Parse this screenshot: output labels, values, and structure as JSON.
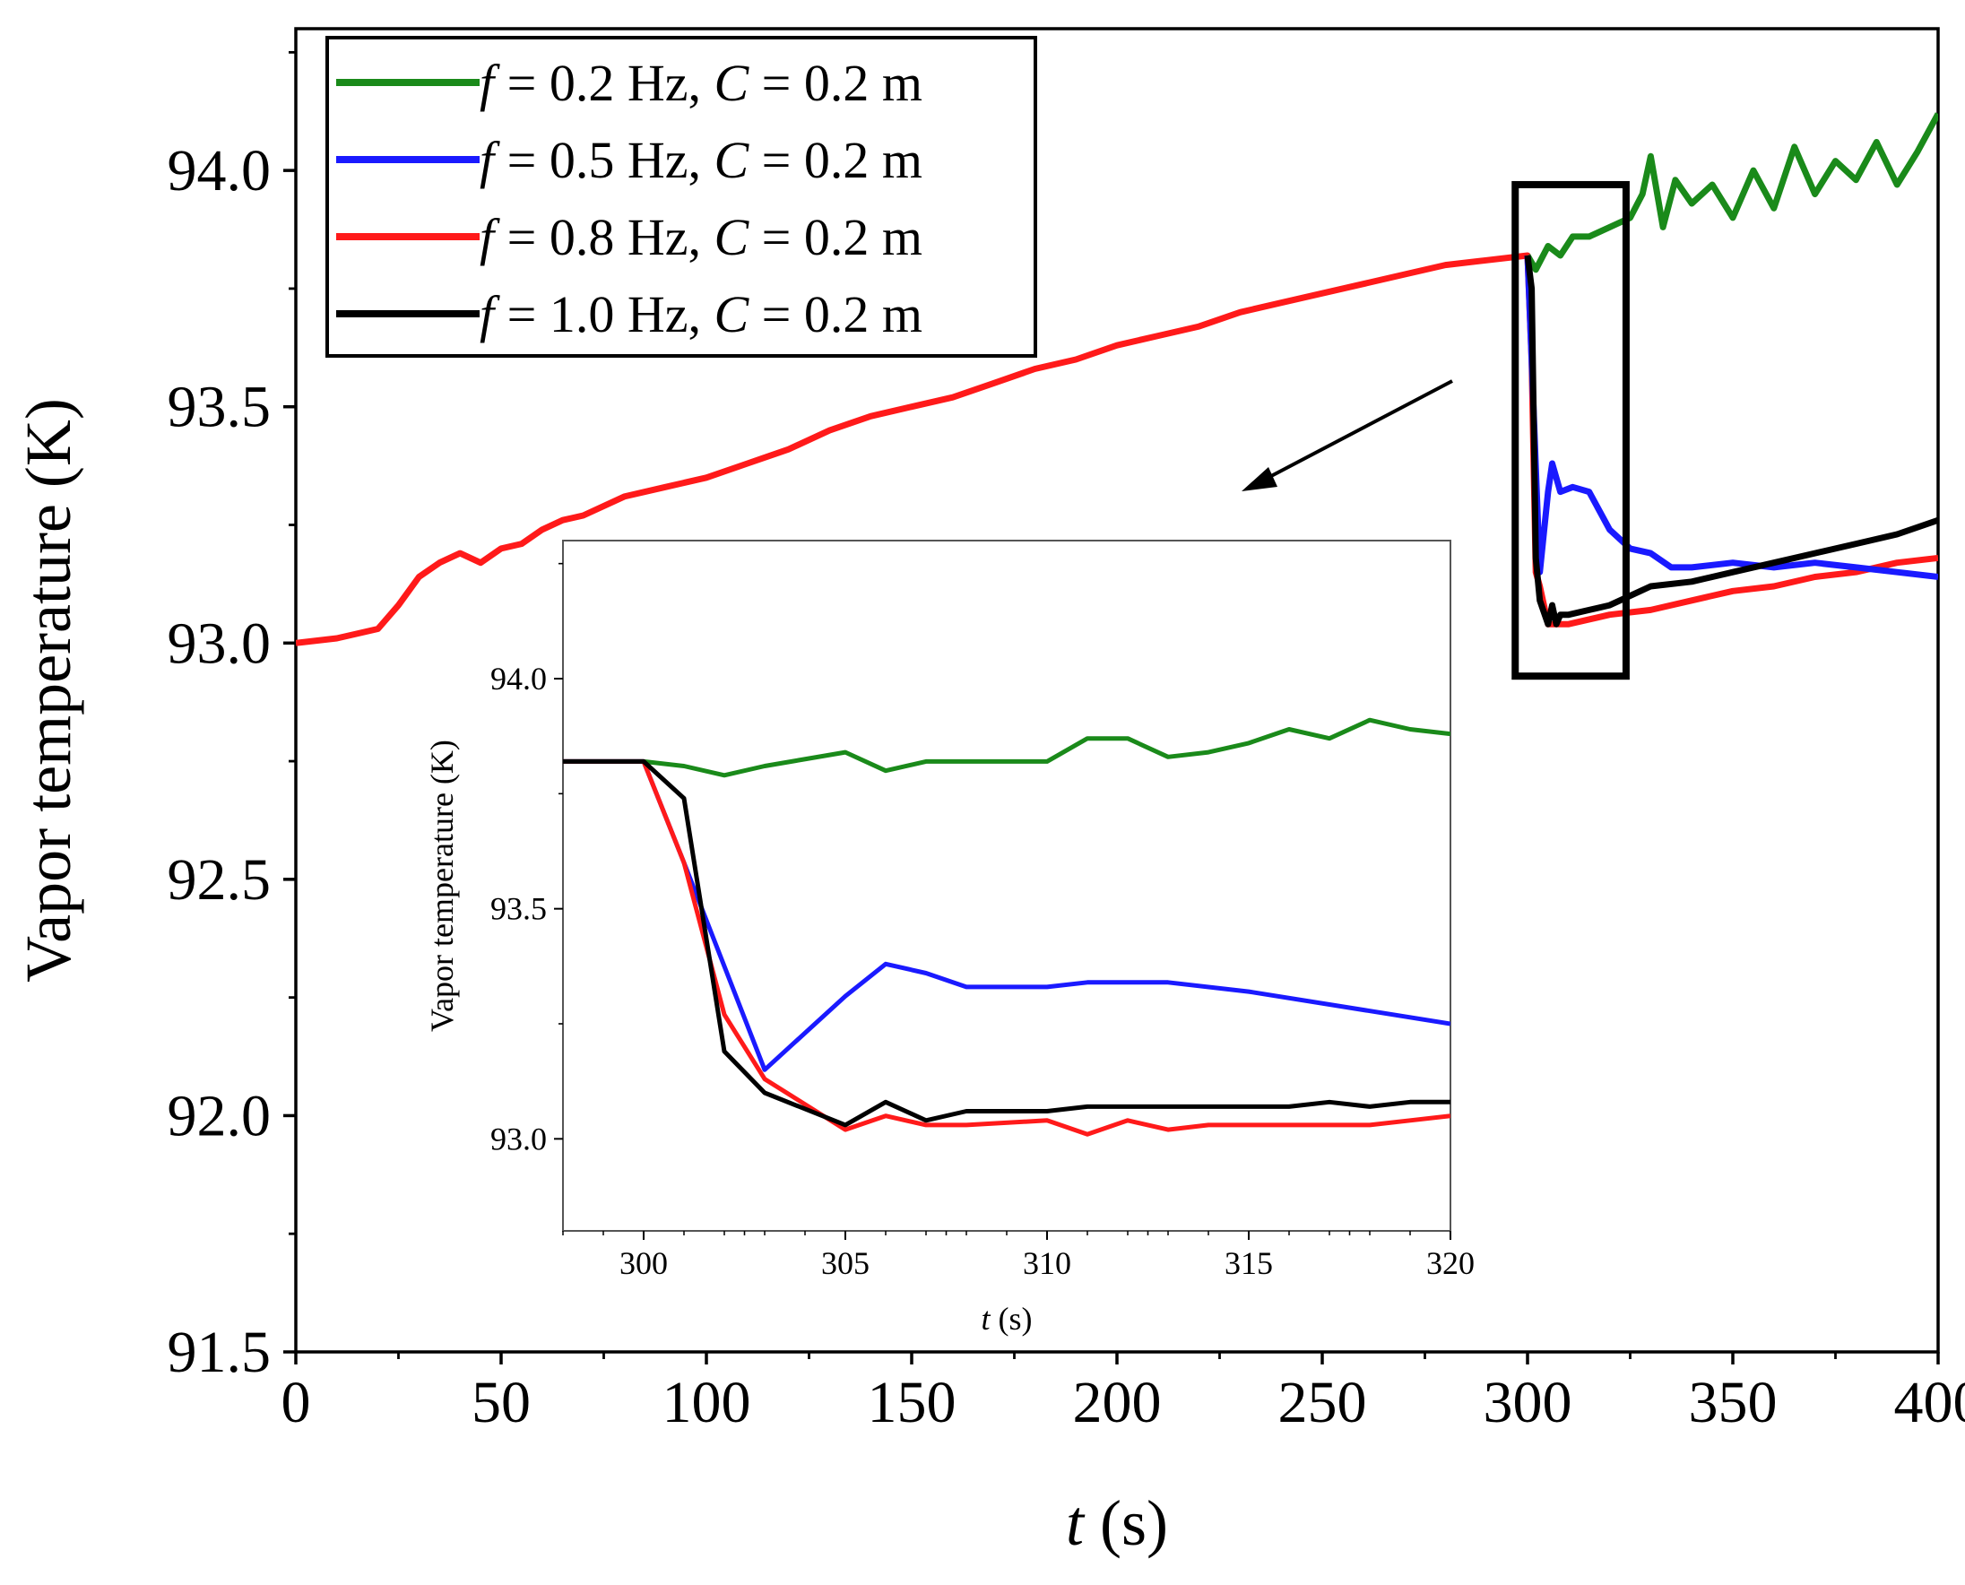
{
  "chart_data": [
    {
      "type": "line",
      "name": "main",
      "xlabel_var": "t",
      "xlabel_unit": " (s)",
      "ylabel": "Vapor temperature (K)",
      "xlim": [
        0,
        400
      ],
      "ylim": [
        91.5,
        94.3
      ],
      "xticks": [
        0,
        50,
        100,
        150,
        200,
        250,
        300,
        350,
        400
      ],
      "yticks": [
        91.5,
        92.0,
        92.5,
        93.0,
        93.5,
        94.0
      ],
      "xtick_labels": [
        "0",
        "50",
        "100",
        "150",
        "200",
        "250",
        "300",
        "350",
        "400"
      ],
      "ytick_labels": [
        "91.5",
        "92.0",
        "92.5",
        "93.0",
        "93.5",
        "94.0"
      ],
      "legend": [
        {
          "f": "0.2",
          "C": "0.2",
          "color": "#1a8a1a",
          "text": "= 0.2 Hz, ",
          "text2": " = 0.2 m"
        },
        {
          "f": "0.5",
          "C": "0.2",
          "color": "#1a1aff",
          "text": "= 0.5 Hz, ",
          "text2": " = 0.2 m"
        },
        {
          "f": "0.8",
          "C": "0.2",
          "color": "#ff1a1a",
          "text": "= 0.8 Hz, ",
          "text2": " = 0.2 m"
        },
        {
          "f": "1.0",
          "C": "0.2",
          "color": "#000000",
          "text": "= 1.0 Hz, ",
          "text2": " = 0.2 m"
        }
      ],
      "series": [
        {
          "name": "f = 0.8 Hz, C = 0.2 m",
          "color": "#ff1a1a",
          "x": [
            0,
            10,
            20,
            25,
            30,
            35,
            40,
            45,
            50,
            55,
            60,
            65,
            70,
            80,
            90,
            100,
            110,
            120,
            130,
            140,
            150,
            160,
            170,
            180,
            190,
            200,
            210,
            220,
            230,
            240,
            250,
            260,
            270,
            280,
            290,
            300,
            301,
            302,
            303,
            305,
            310,
            320,
            330,
            340,
            350,
            360,
            370,
            380,
            390,
            400
          ],
          "y": [
            93.0,
            93.01,
            93.03,
            93.08,
            93.14,
            93.17,
            93.19,
            93.17,
            93.2,
            93.21,
            93.24,
            93.26,
            93.27,
            93.31,
            93.33,
            93.35,
            93.38,
            93.41,
            93.45,
            93.48,
            93.5,
            93.52,
            93.55,
            93.58,
            93.6,
            93.63,
            93.65,
            93.67,
            93.7,
            93.72,
            93.74,
            93.76,
            93.78,
            93.8,
            93.81,
            93.82,
            93.6,
            93.15,
            93.12,
            93.04,
            93.04,
            93.06,
            93.07,
            93.09,
            93.11,
            93.12,
            93.14,
            93.15,
            93.17,
            93.18
          ]
        },
        {
          "name": "f = 0.2 Hz, C = 0.2 m",
          "color": "#1a8a1a",
          "x": [
            300,
            302,
            305,
            308,
            311,
            315,
            320,
            325,
            328,
            330,
            333,
            336,
            340,
            345,
            350,
            355,
            360,
            365,
            370,
            375,
            380,
            385,
            390,
            395,
            400
          ],
          "y": [
            93.82,
            93.79,
            93.84,
            93.82,
            93.86,
            93.86,
            93.88,
            93.9,
            93.95,
            94.03,
            93.88,
            93.98,
            93.93,
            93.97,
            93.9,
            94.0,
            93.92,
            94.05,
            93.95,
            94.02,
            93.98,
            94.06,
            93.97,
            94.04,
            94.12
          ]
        },
        {
          "name": "f = 0.5 Hz, C = 0.2 m",
          "color": "#1a1aff",
          "x": [
            300,
            301,
            303,
            305,
            306,
            308,
            311,
            315,
            320,
            325,
            330,
            335,
            340,
            350,
            360,
            370,
            380,
            390,
            400
          ],
          "y": [
            93.82,
            93.6,
            93.15,
            93.32,
            93.38,
            93.32,
            93.33,
            93.32,
            93.24,
            93.2,
            93.19,
            93.16,
            93.16,
            93.17,
            93.16,
            93.17,
            93.16,
            93.15,
            93.14
          ]
        },
        {
          "name": "f = 1.0 Hz, C = 0.2 m",
          "color": "#000000",
          "x": [
            300,
            301,
            302,
            303,
            305,
            306,
            307,
            308,
            310,
            315,
            320,
            325,
            330,
            340,
            350,
            360,
            370,
            380,
            390,
            400
          ],
          "y": [
            93.82,
            93.75,
            93.18,
            93.09,
            93.04,
            93.08,
            93.04,
            93.06,
            93.06,
            93.07,
            93.08,
            93.1,
            93.12,
            93.13,
            93.15,
            93.17,
            93.19,
            93.21,
            93.23,
            93.26
          ]
        }
      ]
    },
    {
      "type": "line",
      "name": "inset",
      "xlabel_var": "t",
      "xlabel_unit": " (s)",
      "ylabel": "Vapor temperature (K)",
      "xlim": [
        298,
        320
      ],
      "ylim": [
        92.8,
        94.3
      ],
      "xticks": [
        300,
        305,
        310,
        315,
        320
      ],
      "yticks": [
        93.0,
        93.5,
        94.0
      ],
      "xtick_labels": [
        "300",
        "305",
        "310",
        "315",
        "320"
      ],
      "ytick_labels": [
        "93.0",
        "93.5",
        "94.0"
      ],
      "series": [
        {
          "name": "f = 0.2 Hz, C = 0.2 m",
          "color": "#1a8a1a",
          "x": [
            298,
            300,
            301,
            302,
            303,
            305,
            306,
            307,
            308,
            310,
            311,
            312,
            313,
            314,
            315,
            316,
            317,
            318,
            319,
            320
          ],
          "y": [
            93.82,
            93.82,
            93.81,
            93.79,
            93.81,
            93.84,
            93.8,
            93.82,
            93.82,
            93.82,
            93.87,
            93.87,
            93.83,
            93.84,
            93.86,
            93.89,
            93.87,
            93.91,
            93.89,
            93.88
          ]
        },
        {
          "name": "f = 0.5 Hz, C = 0.2 m",
          "color": "#1a1aff",
          "x": [
            298,
            300,
            301,
            303,
            305,
            306,
            307,
            308,
            310,
            311,
            312,
            313,
            315,
            320
          ],
          "y": [
            93.82,
            93.82,
            93.6,
            93.15,
            93.31,
            93.38,
            93.36,
            93.33,
            93.33,
            93.34,
            93.34,
            93.34,
            93.32,
            93.25
          ]
        },
        {
          "name": "f = 0.8 Hz, C = 0.2 m",
          "color": "#ff1a1a",
          "x": [
            298,
            300,
            301,
            302,
            303,
            305,
            306,
            307,
            308,
            310,
            311,
            312,
            313,
            314,
            315,
            316,
            317,
            318,
            319,
            320
          ],
          "y": [
            93.82,
            93.82,
            93.6,
            93.27,
            93.13,
            93.02,
            93.05,
            93.03,
            93.03,
            93.04,
            93.01,
            93.04,
            93.02,
            93.03,
            93.03,
            93.03,
            93.03,
            93.03,
            93.04,
            93.05
          ]
        },
        {
          "name": "f = 1.0 Hz, C = 0.2 m",
          "color": "#000000",
          "x": [
            298,
            300,
            301,
            302,
            303,
            305,
            306,
            307,
            308,
            310,
            311,
            312,
            313,
            314,
            315,
            316,
            317,
            318,
            319,
            320
          ],
          "y": [
            93.82,
            93.82,
            93.74,
            93.19,
            93.1,
            93.03,
            93.08,
            93.04,
            93.06,
            93.06,
            93.07,
            93.07,
            93.07,
            93.07,
            93.07,
            93.07,
            93.08,
            93.07,
            93.08,
            93.08
          ]
        }
      ]
    }
  ]
}
